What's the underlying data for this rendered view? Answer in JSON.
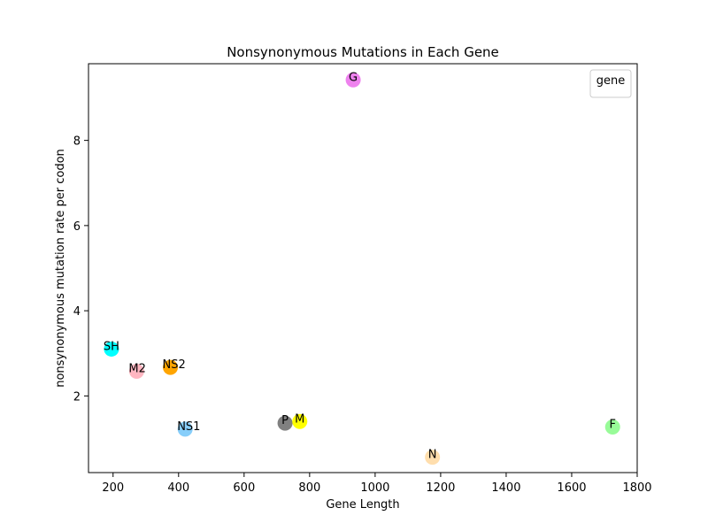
{
  "chart_data": {
    "type": "scatter",
    "title": "Nonsynonymous Mutations in Each Gene",
    "xlabel": "Gene Length",
    "ylabel": "nonsynonymous mutation rate per codon",
    "xlim": [
      125,
      1800
    ],
    "ylim": [
      0.2,
      9.8
    ],
    "xticks": [
      200,
      400,
      600,
      800,
      1000,
      1200,
      1400,
      1600,
      1800
    ],
    "yticks": [
      2,
      4,
      6,
      8
    ],
    "legend": {
      "title": "gene",
      "placement": "top-right"
    },
    "points": [
      {
        "label": "SH",
        "x": 195,
        "y": 3.1,
        "color": "#00ffff"
      },
      {
        "label": "M2",
        "x": 272,
        "y": 2.58,
        "color": "#ffb6c1"
      },
      {
        "label": "NS2",
        "x": 375,
        "y": 2.67,
        "color": "#ffa500"
      },
      {
        "label": "NS1",
        "x": 420,
        "y": 1.22,
        "color": "#87cefa"
      },
      {
        "label": "P",
        "x": 725,
        "y": 1.36,
        "color": "#808080"
      },
      {
        "label": "M",
        "x": 770,
        "y": 1.4,
        "color": "#ffff00"
      },
      {
        "label": "G",
        "x": 933,
        "y": 9.42,
        "color": "#ee82ee"
      },
      {
        "label": "N",
        "x": 1175,
        "y": 0.56,
        "color": "#ffdead"
      },
      {
        "label": "F",
        "x": 1725,
        "y": 1.27,
        "color": "#98fb98"
      }
    ]
  }
}
